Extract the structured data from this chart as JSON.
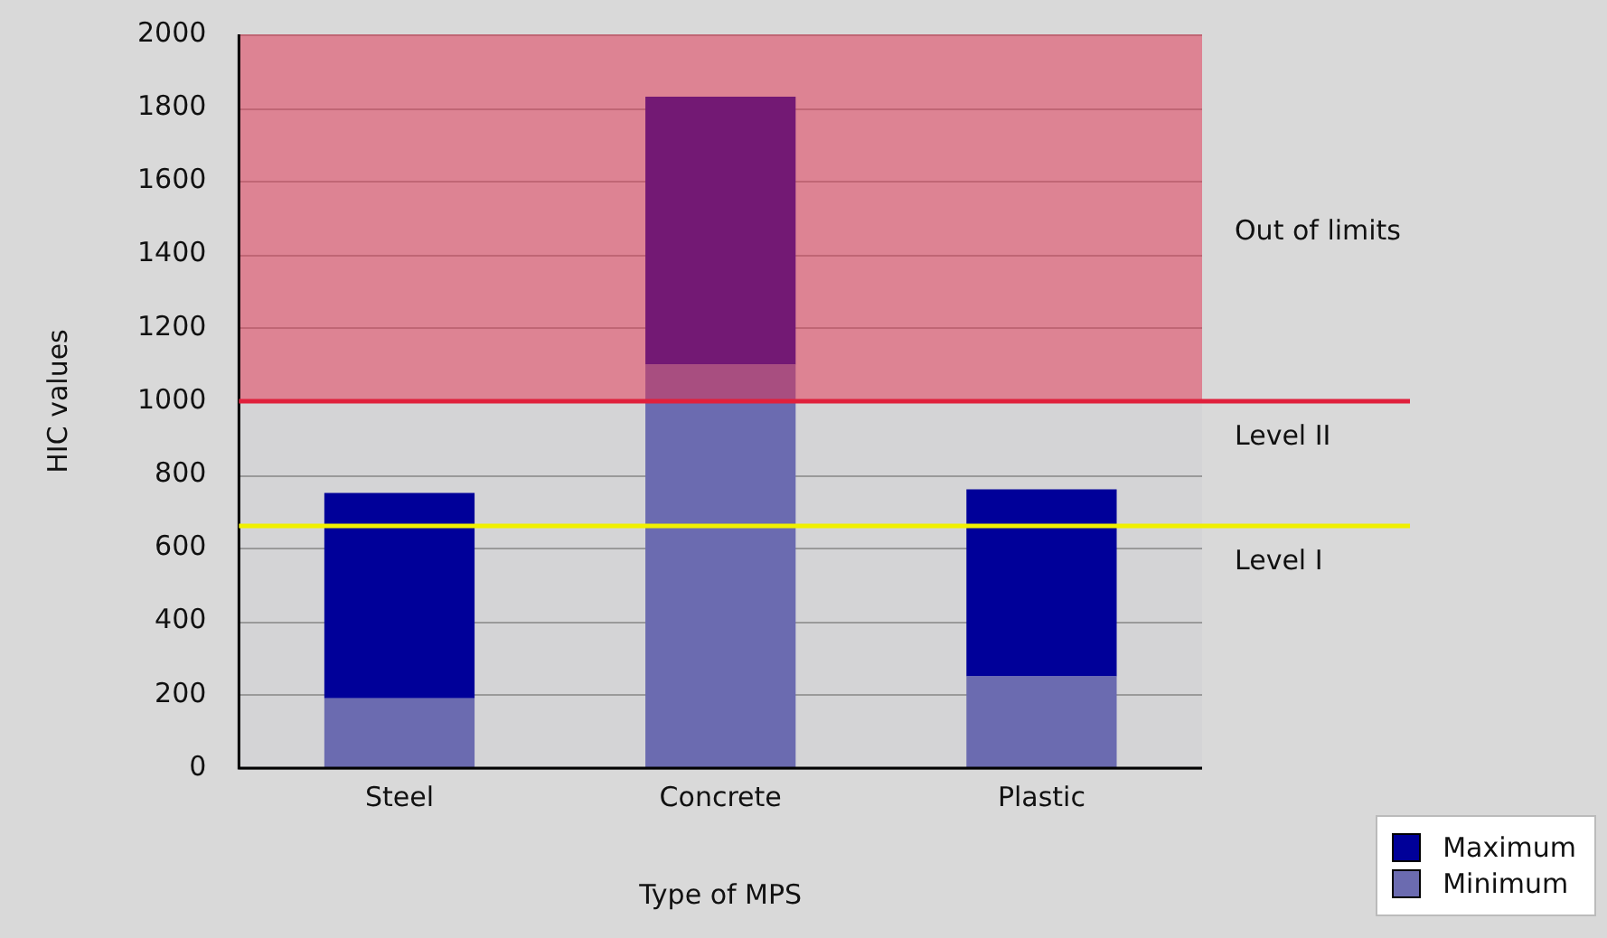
{
  "chart_data": {
    "type": "bar",
    "xlabel": "Type of MPS",
    "ylabel": "HIC values",
    "categories": [
      "Steel",
      "Concrete",
      "Plastic"
    ],
    "stacked": true,
    "series": [
      {
        "name": "Minimum",
        "color": "#6b6bb0",
        "values": [
          190,
          1100,
          250
        ]
      },
      {
        "name": "Maximum",
        "color": "#000099",
        "values": [
          560,
          730,
          510
        ]
      }
    ],
    "ylim": [
      0,
      2000
    ],
    "yticks": [
      0,
      200,
      400,
      600,
      800,
      1000,
      1200,
      1400,
      1600,
      1800,
      2000
    ],
    "grid": "y",
    "legend": "bottom right",
    "bands": [
      {
        "axis": "y",
        "from": 1000,
        "to": 2000,
        "label": "Out of limits",
        "color": "#e63250"
      }
    ],
    "ref_lines": [
      {
        "axis": "y",
        "value": 1000,
        "label": "Level II",
        "color": "#e0203c"
      },
      {
        "axis": "y",
        "value": 660,
        "label": "Level I",
        "color": "#f0f000"
      }
    ]
  }
}
